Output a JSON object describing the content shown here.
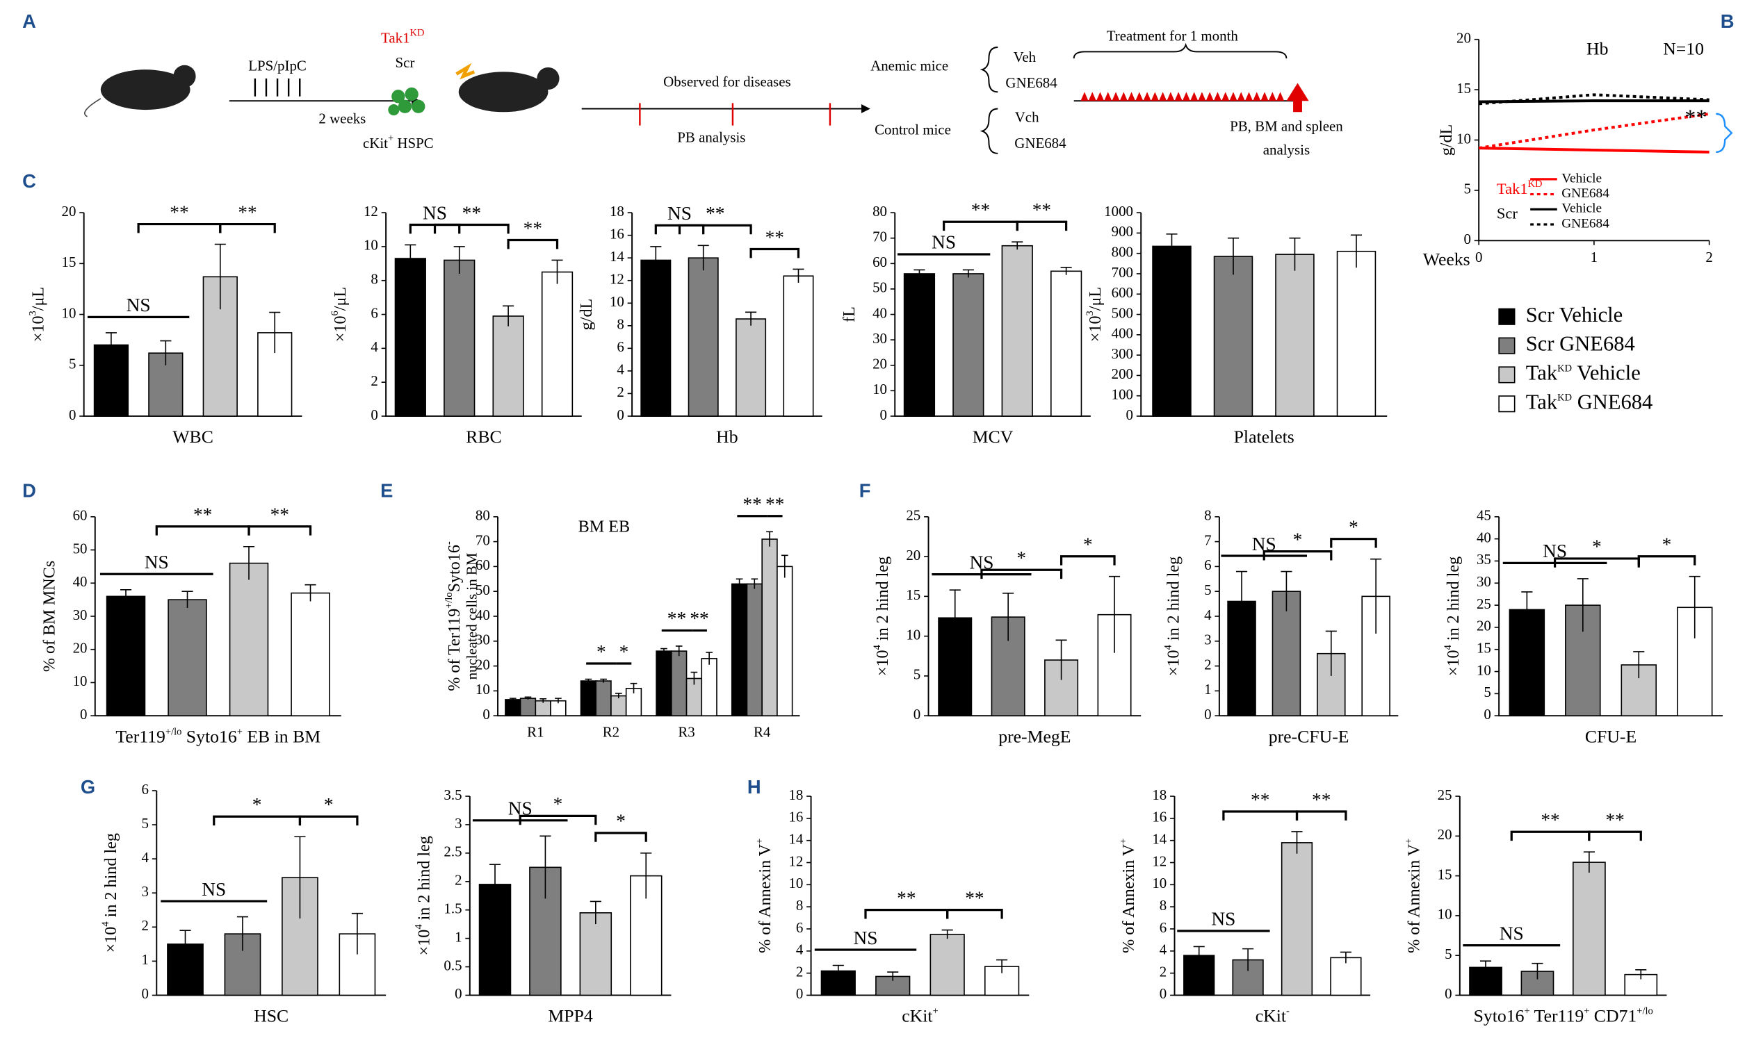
{
  "panel_labels": [
    "A",
    "B",
    "C",
    "D",
    "E",
    "F",
    "G",
    "H"
  ],
  "diagram": {
    "lps": "LPS/pIpC",
    "weeks": "2 weeks",
    "tak": "Tak1",
    "tak_sup": "KD",
    "scr": "Scr",
    "ckit": "cKit",
    "ckit_sup": "+",
    "hspc": " HSPC",
    "observed": "Observed for diseases",
    "pb": "PB analysis",
    "anemic": "Anemic mice",
    "control": "Control mice",
    "veh1": "Veh",
    "gne1": "GNE684",
    "veh2": "Vch",
    "gne2": "GNE684",
    "treatment": "Treatment for 1 month",
    "final1": "PB, BM and spleen",
    "final2": "analysis"
  },
  "legend": {
    "series": [
      {
        "name": [
          "Scr Vehicle"
        ],
        "color": "#000000"
      },
      {
        "name": [
          "Scr GNE684"
        ],
        "color": "#7f7f7f"
      },
      {
        "name": [
          "Tak",
          "KD",
          " Vehicle"
        ],
        "color": "#c8c8c8"
      },
      {
        "name": [
          "Tak",
          "KD",
          " GNE684"
        ],
        "color": "#ffffff"
      }
    ]
  },
  "chart_data": [
    {
      "type": "line",
      "title": "Hb",
      "annotation": "N=10",
      "significance": "**",
      "ylabel": [
        "g/dL"
      ],
      "xlabel": [
        "Weeks"
      ],
      "x": [
        0,
        1,
        2
      ],
      "xlim": [
        0,
        2
      ],
      "xticks": [
        0,
        1,
        2
      ],
      "ylim": [
        0,
        20
      ],
      "yticks": [
        0,
        5,
        10,
        15,
        20
      ],
      "groups": [
        [
          "Tak1",
          "KD"
        ],
        [
          "Scr"
        ]
      ],
      "group_colors": [
        "#ff0000",
        "#000000"
      ],
      "series": [
        {
          "name": "Vehicle",
          "group": 0,
          "color": "#ff0000",
          "dashed": false,
          "values": [
            9.2,
            9.0,
            8.8
          ]
        },
        {
          "name": "GNE684",
          "group": 0,
          "color": "#ff0000",
          "dashed": true,
          "values": [
            9.2,
            11.0,
            12.6
          ]
        },
        {
          "name": "Vehicle",
          "group": 1,
          "color": "#000000",
          "dashed": false,
          "values": [
            13.8,
            13.9,
            13.9
          ]
        },
        {
          "name": "GNE684",
          "group": 1,
          "color": "#000000",
          "dashed": true,
          "values": [
            13.6,
            14.5,
            14.0
          ]
        }
      ]
    },
    {
      "type": "bar",
      "xlabel": [
        "WBC"
      ],
      "ylabel": [
        "×10",
        "3",
        "/μL"
      ],
      "ylim": [
        0,
        20
      ],
      "yticks": [
        0,
        5,
        10,
        15,
        20
      ],
      "values": [
        7,
        6.2,
        13.7,
        8.2
      ],
      "errors": [
        1.2,
        1.2,
        3.2,
        2
      ],
      "sig": [
        {
          "text": "NS",
          "style": "line",
          "from": 0,
          "to": 1
        },
        {
          "text": "**",
          "style": "bracket",
          "from": [
            0,
            1
          ],
          "to": 2
        },
        {
          "text": "**",
          "style": "bracket",
          "from": 2,
          "to": 3
        }
      ]
    },
    {
      "type": "bar",
      "xlabel": [
        "RBC"
      ],
      "ylabel": [
        "×10",
        "6",
        "/μL"
      ],
      "ylim": [
        0,
        12
      ],
      "yticks": [
        0,
        2,
        4,
        6,
        8,
        10,
        12
      ],
      "values": [
        9.3,
        9.2,
        5.9,
        8.5
      ],
      "errors": [
        0.8,
        0.8,
        0.6,
        0.7
      ],
      "sig": [
        {
          "text": "NS",
          "style": "bracket",
          "from": 0,
          "to": 1
        },
        {
          "text": "**",
          "style": "bracket",
          "from": [
            0,
            1
          ],
          "to": 2
        },
        {
          "text": "**",
          "style": "bracket",
          "from": 2,
          "to": 3
        }
      ]
    },
    {
      "type": "bar",
      "xlabel": [
        "Hb"
      ],
      "ylabel": [
        "g/dL"
      ],
      "ylim": [
        0,
        18
      ],
      "yticks": [
        0,
        2,
        4,
        6,
        8,
        10,
        12,
        14,
        16,
        18
      ],
      "values": [
        13.8,
        14,
        8.6,
        12.4
      ],
      "errors": [
        1.2,
        1.1,
        0.6,
        0.6
      ],
      "sig": [
        {
          "text": "NS",
          "style": "bracket",
          "from": 0,
          "to": 1
        },
        {
          "text": "**",
          "style": "bracket",
          "from": [
            0,
            1
          ],
          "to": 2
        },
        {
          "text": "**",
          "style": "bracket",
          "from": 2,
          "to": 3
        }
      ]
    },
    {
      "type": "bar",
      "xlabel": [
        "MCV"
      ],
      "ylabel": [
        "fL"
      ],
      "ylim": [
        0,
        80
      ],
      "yticks": [
        0,
        10,
        20,
        30,
        40,
        50,
        60,
        70,
        80
      ],
      "values": [
        56,
        56,
        67,
        57
      ],
      "errors": [
        1.5,
        1.5,
        1.5,
        1.5
      ],
      "sig": [
        {
          "text": "NS",
          "style": "line",
          "from": 0,
          "to": 1
        },
        {
          "text": "**",
          "style": "bracket",
          "from": [
            0,
            1
          ],
          "to": 2
        },
        {
          "text": "**",
          "style": "bracket",
          "from": 2,
          "to": 3
        }
      ]
    },
    {
      "type": "bar",
      "xlabel": [
        "Platelets"
      ],
      "ylabel": [
        "×10",
        "3",
        "/μL"
      ],
      "ylim": [
        0,
        1000
      ],
      "yticks": [
        0,
        100,
        200,
        300,
        400,
        500,
        600,
        700,
        800,
        900,
        1000
      ],
      "values": [
        835,
        785,
        795,
        810
      ],
      "errors": [
        60,
        90,
        80,
        80
      ],
      "sig": []
    },
    {
      "type": "bar",
      "xlabel": [
        "Ter119",
        "+/lo",
        " Syto16",
        "+",
        " EB in BM"
      ],
      "ylabel": [
        "% of BM MNCs"
      ],
      "ylim": [
        0,
        60
      ],
      "yticks": [
        0,
        10,
        20,
        30,
        40,
        50,
        60
      ],
      "values": [
        36,
        35,
        46,
        37
      ],
      "errors": [
        2,
        2.5,
        5,
        2.5
      ],
      "sig": [
        {
          "text": "NS",
          "style": "line",
          "from": 0,
          "to": 1
        },
        {
          "text": "**",
          "style": "bracket",
          "from": [
            0,
            1
          ],
          "to": 2
        },
        {
          "text": "**",
          "style": "bracket",
          "from": 2,
          "to": 3
        }
      ]
    },
    {
      "type": "grouped_bar",
      "title": "BM EB",
      "ylabel": [
        "% of Ter119",
        "+/lo",
        "Syto16",
        "-"
      ],
      "ylabel2": [
        "nucleated cells in BM"
      ],
      "categories": [
        "R1",
        "R2",
        "R3",
        "R4"
      ],
      "ylim": [
        0,
        80
      ],
      "yticks": [
        0,
        10,
        20,
        30,
        40,
        50,
        60,
        70,
        80
      ],
      "series": [
        {
          "color": "#000000",
          "values": [
            6.5,
            14,
            26,
            53
          ],
          "errors": [
            0.5,
            0.7,
            1,
            2
          ]
        },
        {
          "color": "#7f7f7f",
          "values": [
            7,
            14,
            26,
            53
          ],
          "errors": [
            0.5,
            0.7,
            2,
            2
          ]
        },
        {
          "color": "#c8c8c8",
          "values": [
            6,
            8,
            15,
            71
          ],
          "errors": [
            0.8,
            1,
            2.5,
            3
          ]
        },
        {
          "color": "#ffffff",
          "values": [
            6,
            11,
            23,
            60
          ],
          "errors": [
            1,
            2,
            2.5,
            4.5
          ]
        }
      ],
      "sig": [
        {
          "text": "*",
          "category": 1,
          "from": 0,
          "to": 2
        },
        {
          "text": "*",
          "category": 1,
          "from": 2,
          "to": 3
        },
        {
          "text": "**",
          "category": 2,
          "from": 0,
          "to": 2
        },
        {
          "text": "**",
          "category": 2,
          "from": 2,
          "to": 3
        },
        {
          "text": "**",
          "category": 3,
          "from": 0,
          "to": 2
        },
        {
          "text": "**",
          "category": 3,
          "from": 2,
          "to": 3
        }
      ]
    },
    {
      "type": "bar",
      "xlabel": [
        "pre-MegE"
      ],
      "ylabel": [
        "×10",
        "4",
        " in 2 hind leg"
      ],
      "ylim": [
        0,
        25
      ],
      "yticks": [
        0,
        5,
        10,
        15,
        20,
        25
      ],
      "values": [
        12.3,
        12.4,
        7,
        12.7
      ],
      "errors": [
        3.5,
        3,
        2.5,
        4.8
      ],
      "sig": [
        {
          "text": "NS",
          "style": "line",
          "from": 0,
          "to": 1
        },
        {
          "text": "*",
          "style": "bracket",
          "from": [
            0,
            1
          ],
          "to": 2
        },
        {
          "text": "*",
          "style": "bracket",
          "from": 2,
          "to": 3
        }
      ]
    },
    {
      "type": "bar",
      "xlabel": [
        "pre-CFU-E"
      ],
      "ylabel": [
        "×10",
        "4",
        " in 2 hind leg"
      ],
      "ylim": [
        0,
        8
      ],
      "yticks": [
        0,
        1,
        2,
        3,
        4,
        5,
        6,
        7,
        8
      ],
      "values": [
        4.6,
        5,
        2.5,
        4.8
      ],
      "errors": [
        1.2,
        0.8,
        0.9,
        1.5
      ],
      "sig": [
        {
          "text": "NS",
          "style": "line",
          "from": 0,
          "to": 1
        },
        {
          "text": "*",
          "style": "bracket",
          "from": [
            0,
            1
          ],
          "to": 2
        },
        {
          "text": "*",
          "style": "bracket",
          "from": 2,
          "to": 3
        }
      ]
    },
    {
      "type": "bar",
      "xlabel": [
        "CFU-E"
      ],
      "ylabel": [
        "×10",
        "4",
        " in 2 hind leg"
      ],
      "ylim": [
        0,
        45
      ],
      "yticks": [
        0,
        5,
        10,
        15,
        20,
        25,
        30,
        35,
        40,
        45
      ],
      "values": [
        24,
        25,
        11.5,
        24.5
      ],
      "errors": [
        4,
        6,
        3,
        7
      ],
      "sig": [
        {
          "text": "NS",
          "style": "line",
          "from": 0,
          "to": 1
        },
        {
          "text": "*",
          "style": "bracket",
          "from": [
            0,
            1
          ],
          "to": 2
        },
        {
          "text": "*",
          "style": "bracket",
          "from": 2,
          "to": 3
        }
      ]
    },
    {
      "type": "bar",
      "xlabel": [
        "HSC"
      ],
      "ylabel": [
        "×10",
        "4",
        " in 2 hind leg"
      ],
      "ylim": [
        0,
        6
      ],
      "yticks": [
        0,
        1,
        2,
        3,
        4,
        5,
        6
      ],
      "values": [
        1.5,
        1.8,
        3.45,
        1.8
      ],
      "errors": [
        0.4,
        0.5,
        1.2,
        0.6
      ],
      "sig": [
        {
          "text": "NS",
          "style": "line",
          "from": 0,
          "to": 1
        },
        {
          "text": "*",
          "style": "bracket",
          "from": [
            0,
            1
          ],
          "to": 2
        },
        {
          "text": "*",
          "style": "bracket",
          "from": 2,
          "to": 3
        }
      ]
    },
    {
      "type": "bar",
      "xlabel": [
        "MPP4"
      ],
      "ylabel": [
        "×10",
        "4",
        " in 2 hind leg"
      ],
      "ylim": [
        0,
        3.5
      ],
      "yticks": [
        0,
        0.5,
        1,
        1.5,
        2,
        2.5,
        3,
        3.5
      ],
      "values": [
        1.95,
        2.25,
        1.45,
        2.1
      ],
      "errors": [
        0.35,
        0.55,
        0.2,
        0.4
      ],
      "sig": [
        {
          "text": "NS",
          "style": "line",
          "from": 0,
          "to": 1
        },
        {
          "text": "*",
          "style": "bracket",
          "from": [
            0,
            1
          ],
          "to": 2
        },
        {
          "text": "*",
          "style": "bracket",
          "from": 2,
          "to": 3
        }
      ]
    },
    {
      "type": "bar",
      "xlabel": [
        "cKit",
        "+"
      ],
      "ylabel": [
        "% of Annexin V",
        "+"
      ],
      "ylim": [
        0,
        18
      ],
      "yticks": [
        0,
        2,
        4,
        6,
        8,
        10,
        12,
        14,
        16,
        18
      ],
      "values": [
        2.2,
        1.7,
        5.5,
        2.6
      ],
      "errors": [
        0.5,
        0.4,
        0.4,
        0.6
      ],
      "sig": [
        {
          "text": "NS",
          "style": "line",
          "from": 0,
          "to": 1
        },
        {
          "text": "**",
          "style": "bracket",
          "from": [
            0,
            1
          ],
          "to": 2
        },
        {
          "text": "**",
          "style": "bracket",
          "from": 2,
          "to": 3
        }
      ]
    },
    {
      "type": "bar",
      "xlabel": [
        "cKit",
        "-"
      ],
      "ylabel": [
        "% of Annexin V",
        "+"
      ],
      "ylim": [
        0,
        18
      ],
      "yticks": [
        0,
        2,
        4,
        6,
        8,
        10,
        12,
        14,
        16,
        18
      ],
      "values": [
        3.6,
        3.2,
        13.8,
        3.4
      ],
      "errors": [
        0.8,
        1,
        1,
        0.5
      ],
      "sig": [
        {
          "text": "NS",
          "style": "line",
          "from": 0,
          "to": 1
        },
        {
          "text": "**",
          "style": "bracket",
          "from": [
            0,
            1
          ],
          "to": 2
        },
        {
          "text": "**",
          "style": "bracket",
          "from": 2,
          "to": 3
        }
      ]
    },
    {
      "type": "bar",
      "xlabel": [
        "Syto16",
        "+",
        " Ter119",
        "+",
        " CD71",
        "+/lo"
      ],
      "ylabel": [
        "% of Annexin V",
        "+"
      ],
      "ylim": [
        0,
        25
      ],
      "yticks": [
        0,
        5,
        10,
        15,
        20,
        25
      ],
      "values": [
        3.5,
        3,
        16.7,
        2.6
      ],
      "errors": [
        0.8,
        1,
        1.3,
        0.6
      ],
      "sig": [
        {
          "text": "NS",
          "style": "line",
          "from": 0,
          "to": 1
        },
        {
          "text": "**",
          "style": "bracket",
          "from": [
            0,
            1
          ],
          "to": 2
        },
        {
          "text": "**",
          "style": "bracket",
          "from": 2,
          "to": 3
        }
      ]
    }
  ]
}
